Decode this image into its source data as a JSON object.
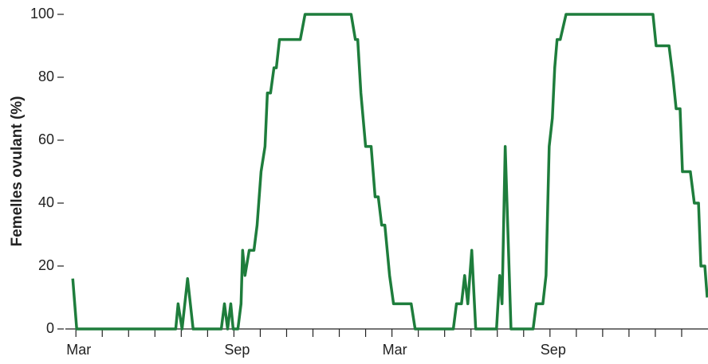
{
  "chart_data": {
    "type": "line",
    "y_label": "Femelles ovulant (%)",
    "x": [
      -0.12,
      0.03,
      3.79,
      3.88,
      4.03,
      4.24,
      4.45,
      5.52,
      5.64,
      5.76,
      5.88,
      5.97,
      6.15,
      6.27,
      6.33,
      6.42,
      6.58,
      6.76,
      6.88,
      7.03,
      7.18,
      7.27,
      7.39,
      7.52,
      7.61,
      7.73,
      8.52,
      8.7,
      10.45,
      10.61,
      10.7,
      10.82,
      11.0,
      11.21,
      11.36,
      11.48,
      11.61,
      11.73,
      11.91,
      12.06,
      12.73,
      12.88,
      14.33,
      14.45,
      14.64,
      14.76,
      14.88,
      15.03,
      15.18,
      15.97,
      16.09,
      16.18,
      16.3,
      16.52,
      17.36,
      17.48,
      17.73,
      17.85,
      17.97,
      18.09,
      18.18,
      18.27,
      18.39,
      18.61,
      21.91,
      22.03,
      22.52,
      22.67,
      22.79,
      22.94,
      23.03,
      23.33,
      23.48,
      23.64,
      23.73,
      23.88,
      23.97
    ],
    "series": [
      {
        "color": "#1e7d3c",
        "values": [
          16,
          0,
          0,
          8,
          0,
          16,
          0,
          0,
          8,
          0,
          8,
          0,
          0,
          8,
          25,
          17,
          25,
          25,
          33,
          50,
          58,
          75,
          75,
          83,
          83,
          92,
          92,
          100,
          100,
          92,
          92,
          75,
          58,
          58,
          42,
          42,
          33,
          33,
          17,
          8,
          8,
          0,
          0,
          8,
          8,
          17,
          8,
          25,
          0,
          0,
          17,
          8,
          58,
          0,
          0,
          8,
          8,
          17,
          58,
          67,
          83,
          92,
          92,
          100,
          100,
          90,
          90,
          80,
          70,
          70,
          50,
          50,
          40,
          40,
          20,
          20,
          10
        ]
      }
    ],
    "xlim": [
      -0.4,
      24
    ],
    "xticks": [
      {
        "value": 0,
        "label": "Mar"
      },
      {
        "value": 1,
        "label": null
      },
      {
        "value": 2,
        "label": null
      },
      {
        "value": 3,
        "label": null
      },
      {
        "value": 4,
        "label": null
      },
      {
        "value": 5,
        "label": null
      },
      {
        "value": 6,
        "label": "Sep"
      },
      {
        "value": 7,
        "label": null
      },
      {
        "value": 8,
        "label": null
      },
      {
        "value": 9,
        "label": null
      },
      {
        "value": 10,
        "label": null
      },
      {
        "value": 11,
        "label": null
      },
      {
        "value": 12,
        "label": "Mar"
      },
      {
        "value": 13,
        "label": null
      },
      {
        "value": 14,
        "label": null
      },
      {
        "value": 15,
        "label": null
      },
      {
        "value": 16,
        "label": null
      },
      {
        "value": 17,
        "label": null
      },
      {
        "value": 18,
        "label": "Sep"
      },
      {
        "value": 19,
        "label": null
      },
      {
        "value": 20,
        "label": null
      },
      {
        "value": 21,
        "label": null
      },
      {
        "value": 22,
        "label": null
      },
      {
        "value": 23,
        "label": null
      }
    ],
    "ylim": [
      0,
      100
    ],
    "yticks": [
      0,
      20,
      40,
      60,
      80,
      100
    ]
  }
}
